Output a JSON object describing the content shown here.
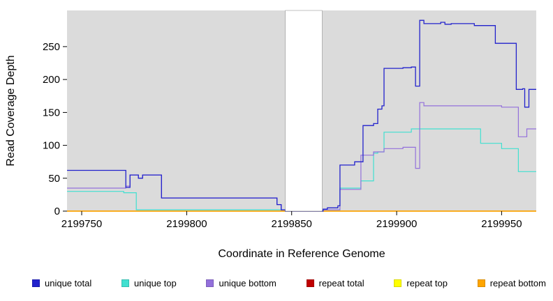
{
  "chart_data": {
    "type": "line",
    "title": "",
    "xlabel": "Coordinate in Reference Genome",
    "ylabel": "Read Coverage Depth",
    "xlim": [
      2199743,
      2199966.5
    ],
    "ylim": [
      0,
      305
    ],
    "x_ticks": [
      2199750,
      2199800,
      2199850,
      2199900,
      2199950
    ],
    "y_ticks": [
      0,
      50,
      100,
      150,
      200,
      250
    ],
    "grid": false,
    "plot_background": "#dbdbdb",
    "masked_region": {
      "start": 2199847,
      "end": 2199864.5,
      "color": "#ffffff"
    },
    "step_interpolation": true,
    "legend_position": "bottom",
    "legend": [
      {
        "label": "unique total",
        "color": "#2222cc"
      },
      {
        "label": "unique top",
        "color": "#40e0d0"
      },
      {
        "label": "unique bottom",
        "color": "#9370db"
      },
      {
        "label": "repeat total",
        "color": "#c00000"
      },
      {
        "label": "repeat top",
        "color": "#ffff00"
      },
      {
        "label": "repeat bottom",
        "color": "#ffa500"
      }
    ],
    "series": [
      {
        "name": "repeat total",
        "color": "#c00000",
        "width": 1.2,
        "points": [
          [
            2199743,
            0
          ]
        ]
      },
      {
        "name": "repeat top",
        "color": "#ffff00",
        "width": 1.2,
        "points": [
          [
            2199743,
            0
          ]
        ]
      },
      {
        "name": "repeat bottom",
        "color": "#ffa500",
        "width": 1.4,
        "points": [
          [
            2199743,
            0
          ]
        ]
      },
      {
        "name": "unique top",
        "color": "#40e0d0",
        "width": 1.2,
        "points": [
          [
            2199743,
            30
          ],
          [
            2199770,
            28
          ],
          [
            2199776,
            2
          ],
          [
            2199847,
            0
          ],
          [
            2199865,
            2
          ],
          [
            2199873,
            35
          ],
          [
            2199883,
            46
          ],
          [
            2199889,
            88
          ],
          [
            2199891,
            90
          ],
          [
            2199894,
            120
          ],
          [
            2199907,
            125
          ],
          [
            2199940,
            103
          ],
          [
            2199950,
            95
          ],
          [
            2199958,
            60
          ]
        ]
      },
      {
        "name": "unique bottom",
        "color": "#9370db",
        "width": 1.2,
        "points": [
          [
            2199743,
            35
          ],
          [
            2199771,
            38
          ],
          [
            2199773,
            55
          ],
          [
            2199777,
            50
          ],
          [
            2199779,
            55
          ],
          [
            2199788,
            20
          ],
          [
            2199843,
            10
          ],
          [
            2199845,
            2
          ],
          [
            2199847,
            0
          ],
          [
            2199865,
            2
          ],
          [
            2199873,
            33
          ],
          [
            2199883,
            85
          ],
          [
            2199889,
            90
          ],
          [
            2199894,
            95
          ],
          [
            2199903,
            97
          ],
          [
            2199909,
            65
          ],
          [
            2199911,
            165
          ],
          [
            2199913,
            160
          ],
          [
            2199950,
            158
          ],
          [
            2199958,
            113
          ],
          [
            2199962,
            125
          ]
        ]
      },
      {
        "name": "unique total",
        "color": "#2222cc",
        "width": 1.3,
        "points": [
          [
            2199743,
            62
          ],
          [
            2199771,
            36
          ],
          [
            2199773,
            55
          ],
          [
            2199777,
            50
          ],
          [
            2199779,
            55
          ],
          [
            2199788,
            20
          ],
          [
            2199843,
            10
          ],
          [
            2199845,
            2
          ],
          [
            2199847,
            0
          ],
          [
            2199865,
            3
          ],
          [
            2199867,
            5
          ],
          [
            2199872,
            8
          ],
          [
            2199873,
            70
          ],
          [
            2199880,
            75
          ],
          [
            2199884,
            130
          ],
          [
            2199889,
            133
          ],
          [
            2199891,
            155
          ],
          [
            2199893,
            160
          ],
          [
            2199894,
            217
          ],
          [
            2199903,
            218
          ],
          [
            2199907,
            219
          ],
          [
            2199909,
            190
          ],
          [
            2199911,
            290
          ],
          [
            2199913,
            285
          ],
          [
            2199921,
            287
          ],
          [
            2199923,
            284
          ],
          [
            2199926,
            285
          ],
          [
            2199937,
            282
          ],
          [
            2199947,
            255
          ],
          [
            2199957,
            185
          ],
          [
            2199960,
            186
          ],
          [
            2199961,
            158
          ],
          [
            2199963,
            185
          ]
        ]
      }
    ]
  }
}
